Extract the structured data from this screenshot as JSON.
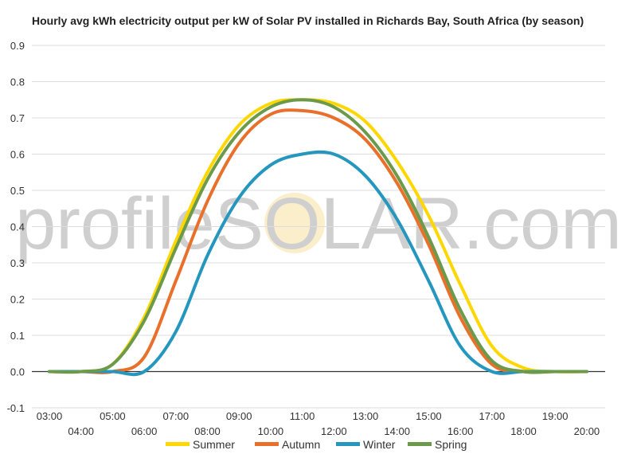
{
  "chart_data": {
    "type": "line",
    "title": "Hourly avg kWh electricity output per kW of Solar PV installed in Richards Bay, South Africa (by season)",
    "xlabel": "",
    "ylabel": "",
    "ylim": [
      -0.1,
      0.9
    ],
    "y_ticks": [
      -0.1,
      0.0,
      0.1,
      0.2,
      0.3,
      0.4,
      0.5,
      0.6,
      0.7,
      0.8,
      0.9
    ],
    "y_tick_labels": [
      "-0.1",
      "0.0",
      "0.1",
      "0.2",
      "0.3",
      "0.4",
      "0.5",
      "0.6",
      "0.7",
      "0.8",
      "0.9"
    ],
    "x_tick_labels": [
      "03:00",
      "04:00",
      "05:00",
      "06:00",
      "07:00",
      "08:00",
      "09:00",
      "10:00",
      "11:00",
      "12:00",
      "13:00",
      "14:00",
      "15:00",
      "16:00",
      "17:00",
      "18:00",
      "19:00",
      "20:00"
    ],
    "x": [
      "03:00",
      "04:00",
      "05:00",
      "06:00",
      "07:00",
      "08:00",
      "09:00",
      "10:00",
      "11:00",
      "12:00",
      "13:00",
      "14:00",
      "15:00",
      "16:00",
      "17:00",
      "18:00",
      "19:00",
      "20:00"
    ],
    "grid": true,
    "legend_position": "bottom",
    "watermark": "profileSOLAR.com",
    "series": [
      {
        "name": "Summer",
        "color": "#FFD700",
        "values": [
          0.0,
          0.0,
          0.02,
          0.15,
          0.36,
          0.55,
          0.68,
          0.74,
          0.75,
          0.74,
          0.69,
          0.58,
          0.43,
          0.24,
          0.07,
          0.01,
          0.0,
          0.0
        ]
      },
      {
        "name": "Autumn",
        "color": "#E8702A",
        "values": [
          0.0,
          0.0,
          0.0,
          0.04,
          0.25,
          0.47,
          0.63,
          0.71,
          0.72,
          0.7,
          0.64,
          0.52,
          0.35,
          0.15,
          0.02,
          0.0,
          0.0,
          0.0
        ]
      },
      {
        "name": "Winter",
        "color": "#2596BE",
        "values": [
          0.0,
          0.0,
          0.0,
          0.0,
          0.11,
          0.32,
          0.48,
          0.57,
          0.6,
          0.6,
          0.54,
          0.42,
          0.25,
          0.07,
          0.0,
          0.0,
          0.0,
          0.0
        ]
      },
      {
        "name": "Spring",
        "color": "#6B9A4A",
        "values": [
          0.0,
          0.0,
          0.02,
          0.14,
          0.34,
          0.53,
          0.66,
          0.73,
          0.75,
          0.73,
          0.66,
          0.54,
          0.37,
          0.17,
          0.03,
          0.0,
          0.0,
          0.0
        ]
      }
    ]
  }
}
